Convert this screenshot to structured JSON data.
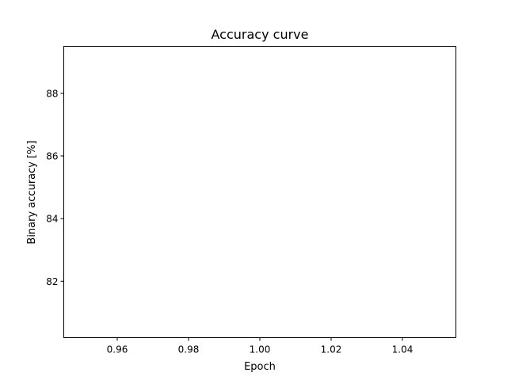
{
  "chart_data": {
    "type": "line",
    "title": "Accuracy curve",
    "xlabel": "Epoch",
    "ylabel": "Binary accuracy [%]",
    "xlim": [
      0.945,
      1.055
    ],
    "ylim": [
      80.2,
      89.5
    ],
    "xticks": [
      0.96,
      0.98,
      1.0,
      1.02,
      1.04
    ],
    "xtick_labels": [
      "0.96",
      "0.98",
      "1.00",
      "1.02",
      "1.04"
    ],
    "yticks": [
      82,
      84,
      86,
      88
    ],
    "ytick_labels": [
      "82",
      "84",
      "86",
      "88"
    ],
    "grid": false,
    "series": []
  }
}
